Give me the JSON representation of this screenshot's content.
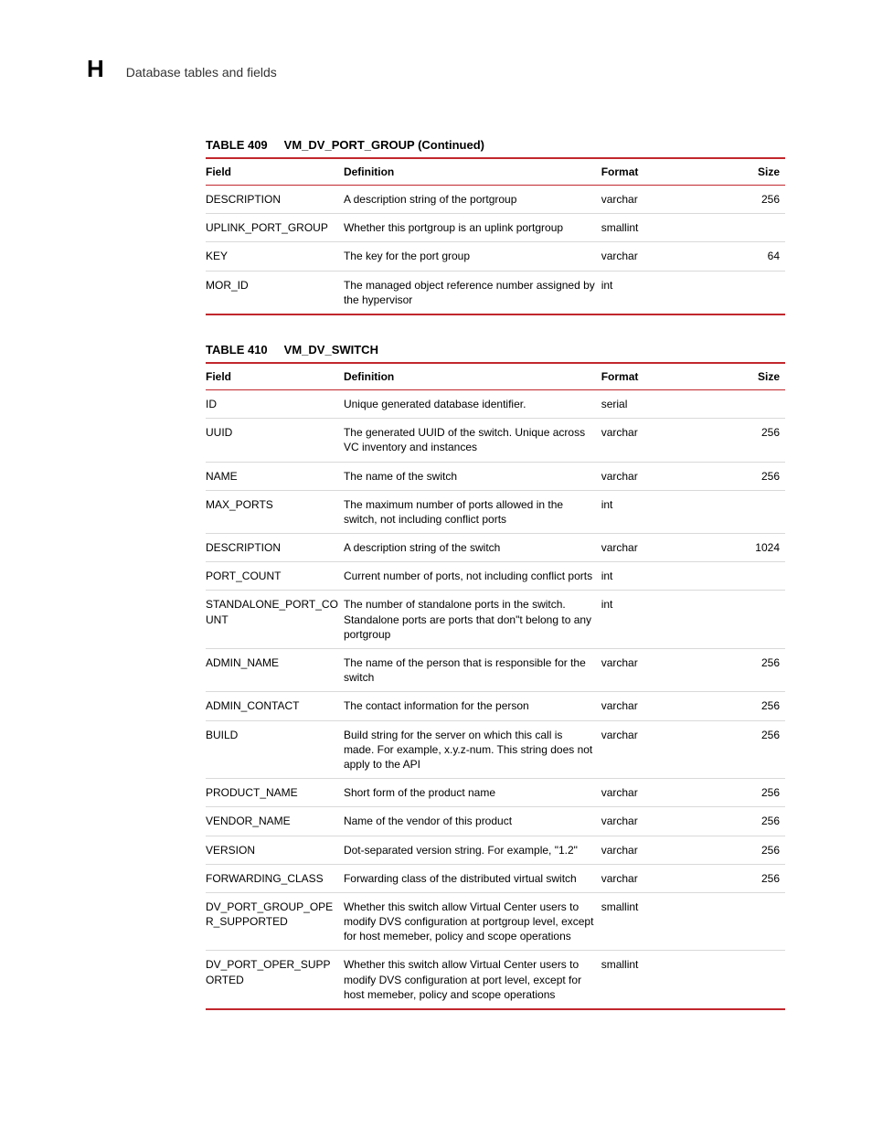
{
  "header": {
    "appendix": "H",
    "section": "Database tables and fields"
  },
  "tables": [
    {
      "caption_num": "TABLE 409",
      "caption_name": "VM_DV_PORT_GROUP (Continued)",
      "columns": [
        "Field",
        "Definition",
        "Format",
        "Size"
      ],
      "rows": [
        {
          "field": "DESCRIPTION",
          "definition": "A description string of the portgroup",
          "format": "varchar",
          "size": "256"
        },
        {
          "field": "UPLINK_PORT_GROUP",
          "definition": "Whether this portgroup is an uplink portgroup",
          "format": "smallint",
          "size": ""
        },
        {
          "field": "KEY",
          "definition": "The key for the port group",
          "format": "varchar",
          "size": "64"
        },
        {
          "field": "MOR_ID",
          "definition": "The managed object reference number assigned by the hypervisor",
          "format": "int",
          "size": ""
        }
      ]
    },
    {
      "caption_num": "TABLE 410",
      "caption_name": "VM_DV_SWITCH",
      "columns": [
        "Field",
        "Definition",
        "Format",
        "Size"
      ],
      "rows": [
        {
          "field": "ID",
          "definition": "Unique generated database identifier.",
          "format": "serial",
          "size": ""
        },
        {
          "field": "UUID",
          "definition": "The generated UUID of the switch. Unique across VC inventory and instances",
          "format": "varchar",
          "size": "256"
        },
        {
          "field": "NAME",
          "definition": "The name of the switch",
          "format": "varchar",
          "size": "256"
        },
        {
          "field": "MAX_PORTS",
          "definition": "The maximum number of ports allowed in the switch, not including conflict ports",
          "format": "int",
          "size": ""
        },
        {
          "field": "DESCRIPTION",
          "definition": "A description string of the switch",
          "format": "varchar",
          "size": "1024"
        },
        {
          "field": "PORT_COUNT",
          "definition": "Current number of ports, not including conflict ports",
          "format": "int",
          "size": ""
        },
        {
          "field": "STANDALONE_PORT_COUNT",
          "definition": "The number of standalone ports in the switch. Standalone ports are ports that don\"t belong to any portgroup",
          "format": "int",
          "size": ""
        },
        {
          "field": "ADMIN_NAME",
          "definition": "The name of the person that is responsible for the switch",
          "format": "varchar",
          "size": "256"
        },
        {
          "field": "ADMIN_CONTACT",
          "definition": "The contact information for the person",
          "format": "varchar",
          "size": "256"
        },
        {
          "field": "BUILD",
          "definition": "Build string for the server on which this call is made. For example, x.y.z-num. This string does not apply to the API",
          "format": "varchar",
          "size": "256"
        },
        {
          "field": "PRODUCT_NAME",
          "definition": "Short form of the product name",
          "format": "varchar",
          "size": "256"
        },
        {
          "field": "VENDOR_NAME",
          "definition": "Name of the vendor of this product",
          "format": "varchar",
          "size": "256"
        },
        {
          "field": "VERSION",
          "definition": "Dot-separated version string. For example, \"1.2\"",
          "format": "varchar",
          "size": "256"
        },
        {
          "field": "FORWARDING_CLASS",
          "definition": "Forwarding class of the distributed virtual switch",
          "format": "varchar",
          "size": "256"
        },
        {
          "field": "DV_PORT_GROUP_OPER_SUPPORTED",
          "definition": "Whether this switch allow Virtual Center users to modify DVS configuration at portgroup level, except for host memeber, policy and scope operations",
          "format": "smallint",
          "size": ""
        },
        {
          "field": "DV_PORT_OPER_SUPPORTED",
          "definition": "Whether this switch allow Virtual Center users to modify DVS configuration at port level, except for host memeber, policy and scope operations",
          "format": "smallint",
          "size": ""
        }
      ]
    }
  ]
}
